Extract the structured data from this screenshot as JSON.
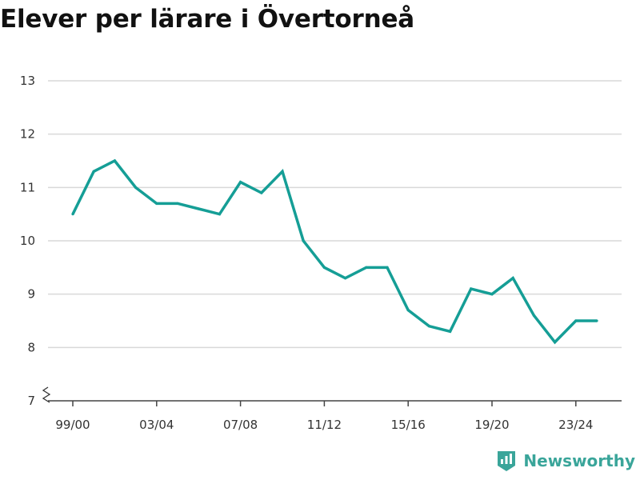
{
  "chart_data": {
    "type": "line",
    "title": "Elever per lärare i Övertorneå",
    "xlabel": "",
    "ylabel": "",
    "ylim": [
      7,
      13
    ],
    "yticks": [
      7,
      8,
      9,
      10,
      11,
      12,
      13
    ],
    "y_axis_break": true,
    "grid": true,
    "legend": "none",
    "line_color": "#159e96",
    "x": [
      "99/00",
      "00/01",
      "01/02",
      "02/03",
      "03/04",
      "04/05",
      "05/06",
      "06/07",
      "07/08",
      "08/09",
      "09/10",
      "10/11",
      "11/12",
      "12/13",
      "13/14",
      "14/15",
      "15/16",
      "16/17",
      "17/18",
      "18/19",
      "19/20",
      "20/21",
      "21/22",
      "22/23",
      "23/24",
      "24/25"
    ],
    "xtick_labels": [
      "99/00",
      "03/04",
      "07/08",
      "11/12",
      "15/16",
      "19/20",
      "23/24"
    ],
    "series": [
      {
        "values": [
          10.5,
          11.3,
          11.5,
          11.0,
          10.7,
          10.7,
          10.6,
          10.5,
          11.1,
          10.9,
          11.3,
          10.0,
          9.5,
          9.3,
          9.5,
          9.5,
          8.7,
          8.4,
          8.3,
          9.1,
          9.0,
          9.3,
          8.6,
          8.1,
          8.5,
          8.5
        ]
      }
    ]
  },
  "logo": {
    "text": "Newsworthy",
    "icon": "bar-chart-logo-icon",
    "color": "#3aa59a"
  }
}
